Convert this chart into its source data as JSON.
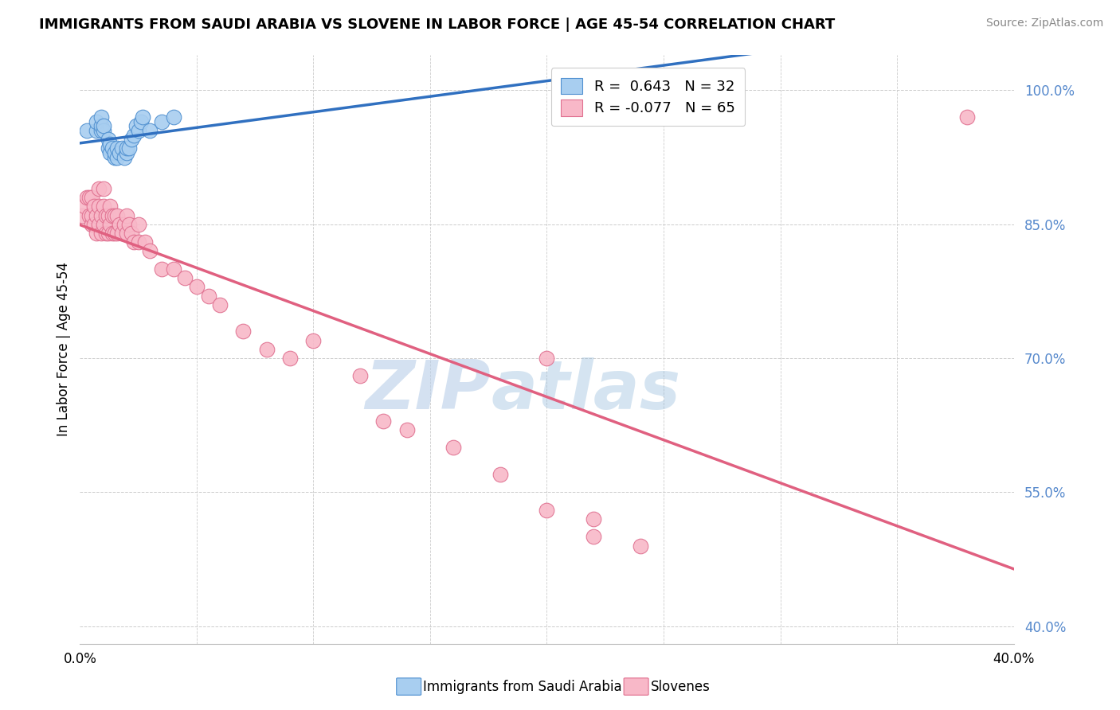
{
  "title": "IMMIGRANTS FROM SAUDI ARABIA VS SLOVENE IN LABOR FORCE | AGE 45-54 CORRELATION CHART",
  "source": "Source: ZipAtlas.com",
  "ylabel": "In Labor Force | Age 45-54",
  "xlim": [
    0.0,
    0.4
  ],
  "ylim": [
    0.38,
    1.04
  ],
  "yticks": [
    0.4,
    0.55,
    0.7,
    0.85,
    1.0
  ],
  "ytick_labels": [
    "40.0%",
    "55.0%",
    "70.0%",
    "85.0%",
    "100.0%"
  ],
  "blue_R": 0.643,
  "blue_N": 32,
  "pink_R": -0.077,
  "pink_N": 65,
  "blue_color": "#a8cef0",
  "pink_color": "#f8b8c8",
  "blue_edge_color": "#5090d0",
  "pink_edge_color": "#e07090",
  "blue_line_color": "#3070c0",
  "pink_line_color": "#e06080",
  "watermark_zip": "ZIP",
  "watermark_atlas": "atlas",
  "blue_x": [
    0.003,
    0.007,
    0.007,
    0.009,
    0.009,
    0.009,
    0.01,
    0.01,
    0.012,
    0.012,
    0.013,
    0.013,
    0.014,
    0.015,
    0.015,
    0.016,
    0.016,
    0.017,
    0.018,
    0.019,
    0.02,
    0.02,
    0.021,
    0.022,
    0.023,
    0.024,
    0.025,
    0.026,
    0.027,
    0.03,
    0.035,
    0.04
  ],
  "blue_y": [
    0.955,
    0.955,
    0.965,
    0.955,
    0.96,
    0.97,
    0.955,
    0.96,
    0.935,
    0.945,
    0.93,
    0.94,
    0.935,
    0.925,
    0.93,
    0.925,
    0.935,
    0.93,
    0.935,
    0.925,
    0.93,
    0.935,
    0.935,
    0.945,
    0.95,
    0.96,
    0.955,
    0.965,
    0.97,
    0.955,
    0.965,
    0.97
  ],
  "pink_x": [
    0.001,
    0.002,
    0.003,
    0.004,
    0.004,
    0.005,
    0.005,
    0.005,
    0.006,
    0.006,
    0.007,
    0.007,
    0.008,
    0.008,
    0.008,
    0.009,
    0.009,
    0.01,
    0.01,
    0.01,
    0.011,
    0.011,
    0.012,
    0.012,
    0.013,
    0.013,
    0.014,
    0.014,
    0.015,
    0.015,
    0.016,
    0.016,
    0.017,
    0.018,
    0.019,
    0.02,
    0.02,
    0.021,
    0.022,
    0.023,
    0.025,
    0.025,
    0.028,
    0.03,
    0.035,
    0.04,
    0.045,
    0.05,
    0.055,
    0.06,
    0.07,
    0.08,
    0.09,
    0.1,
    0.12,
    0.13,
    0.14,
    0.16,
    0.18,
    0.2,
    0.22,
    0.22,
    0.24,
    0.38,
    0.2
  ],
  "pink_y": [
    0.86,
    0.87,
    0.88,
    0.86,
    0.88,
    0.85,
    0.86,
    0.88,
    0.85,
    0.87,
    0.84,
    0.86,
    0.85,
    0.87,
    0.89,
    0.84,
    0.86,
    0.85,
    0.87,
    0.89,
    0.84,
    0.86,
    0.84,
    0.86,
    0.85,
    0.87,
    0.84,
    0.86,
    0.84,
    0.86,
    0.84,
    0.86,
    0.85,
    0.84,
    0.85,
    0.84,
    0.86,
    0.85,
    0.84,
    0.83,
    0.83,
    0.85,
    0.83,
    0.82,
    0.8,
    0.8,
    0.79,
    0.78,
    0.77,
    0.76,
    0.73,
    0.71,
    0.7,
    0.72,
    0.68,
    0.63,
    0.62,
    0.6,
    0.57,
    0.53,
    0.5,
    0.52,
    0.49,
    0.97,
    0.7
  ]
}
